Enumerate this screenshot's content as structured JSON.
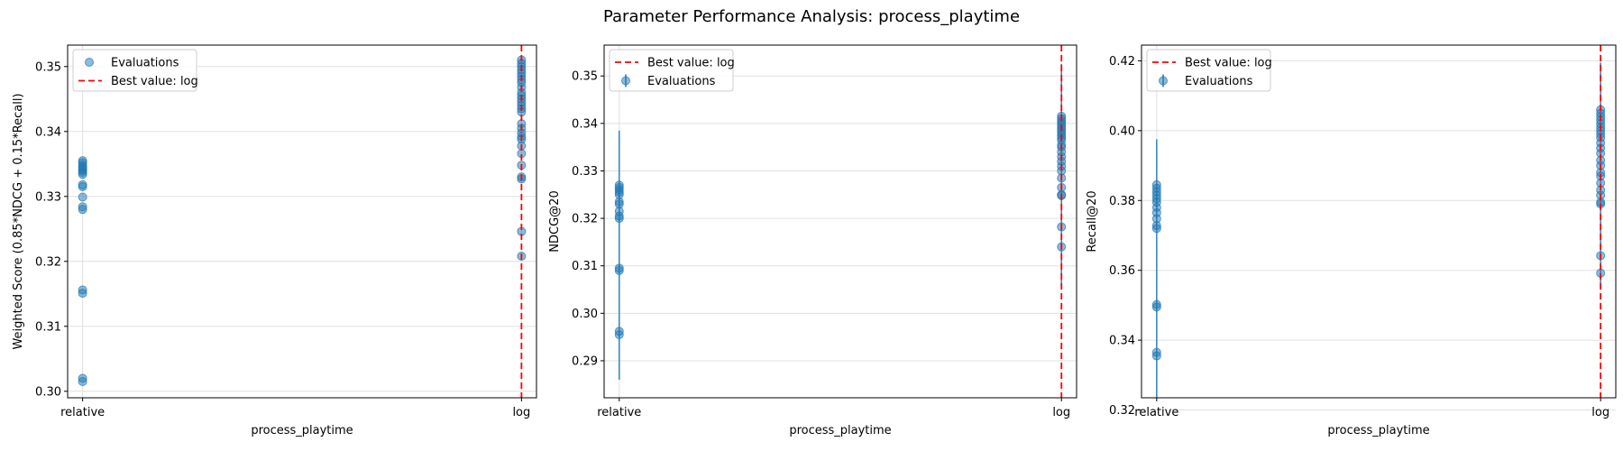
{
  "suptitle": "Parameter Performance Analysis: process_playtime",
  "colors": {
    "points": "#1f77b4",
    "best_line": "#ff0000",
    "grid": "#e0e0e0",
    "axis": "#000000"
  },
  "chart_data": [
    {
      "type": "scatter",
      "xlabel": "process_playtime",
      "ylabel": "Weighted Score (0.85*NDCG + 0.15*Recall)",
      "categories": [
        "relative",
        "log"
      ],
      "ylim": [
        0.299,
        0.3533
      ],
      "yticks": [
        0.3,
        0.31,
        0.32,
        0.33,
        0.34,
        0.35
      ],
      "ytick_labels": [
        "0.30",
        "0.31",
        "0.32",
        "0.33",
        "0.34",
        "0.35"
      ],
      "grid": true,
      "legend_position": "top-left",
      "legend": [
        "Evaluations",
        "Best value: log"
      ],
      "legend_order": [
        "points",
        "line"
      ],
      "best_value": "log",
      "error_bars": null,
      "series": [
        {
          "name": "Evaluations",
          "points": [
            {
              "x": "relative",
              "y": 0.3355
            },
            {
              "x": "relative",
              "y": 0.3352
            },
            {
              "x": "relative",
              "y": 0.3348
            },
            {
              "x": "relative",
              "y": 0.3345
            },
            {
              "x": "relative",
              "y": 0.3342
            },
            {
              "x": "relative",
              "y": 0.334
            },
            {
              "x": "relative",
              "y": 0.3337
            },
            {
              "x": "relative",
              "y": 0.3334
            },
            {
              "x": "relative",
              "y": 0.3318
            },
            {
              "x": "relative",
              "y": 0.3315
            },
            {
              "x": "relative",
              "y": 0.3299
            },
            {
              "x": "relative",
              "y": 0.3284
            },
            {
              "x": "relative",
              "y": 0.328
            },
            {
              "x": "relative",
              "y": 0.3156
            },
            {
              "x": "relative",
              "y": 0.3151
            },
            {
              "x": "relative",
              "y": 0.302
            },
            {
              "x": "relative",
              "y": 0.3015
            },
            {
              "x": "log",
              "y": 0.351
            },
            {
              "x": "log",
              "y": 0.3505
            },
            {
              "x": "log",
              "y": 0.35
            },
            {
              "x": "log",
              "y": 0.3495
            },
            {
              "x": "log",
              "y": 0.349
            },
            {
              "x": "log",
              "y": 0.3485
            },
            {
              "x": "log",
              "y": 0.348
            },
            {
              "x": "log",
              "y": 0.3475
            },
            {
              "x": "log",
              "y": 0.3468
            },
            {
              "x": "log",
              "y": 0.346
            },
            {
              "x": "log",
              "y": 0.3455
            },
            {
              "x": "log",
              "y": 0.345
            },
            {
              "x": "log",
              "y": 0.3445
            },
            {
              "x": "log",
              "y": 0.344
            },
            {
              "x": "log",
              "y": 0.3435
            },
            {
              "x": "log",
              "y": 0.343
            },
            {
              "x": "log",
              "y": 0.3412
            },
            {
              "x": "log",
              "y": 0.3405
            },
            {
              "x": "log",
              "y": 0.3398
            },
            {
              "x": "log",
              "y": 0.3392
            },
            {
              "x": "log",
              "y": 0.3388
            },
            {
              "x": "log",
              "y": 0.3378
            },
            {
              "x": "log",
              "y": 0.3366
            },
            {
              "x": "log",
              "y": 0.3348
            },
            {
              "x": "log",
              "y": 0.333
            },
            {
              "x": "log",
              "y": 0.3327
            },
            {
              "x": "log",
              "y": 0.3246
            },
            {
              "x": "log",
              "y": 0.3208
            }
          ]
        }
      ]
    },
    {
      "type": "scatter",
      "xlabel": "process_playtime",
      "ylabel": "NDCG@20",
      "categories": [
        "relative",
        "log"
      ],
      "ylim": [
        0.2822,
        0.3565
      ],
      "yticks": [
        0.29,
        0.3,
        0.31,
        0.32,
        0.33,
        0.34,
        0.35
      ],
      "ytick_labels": [
        "0.29",
        "0.30",
        "0.31",
        "0.32",
        "0.33",
        "0.34",
        "0.35"
      ],
      "grid": true,
      "legend_position": "top-left",
      "legend": [
        "Best value: log",
        "Evaluations"
      ],
      "legend_order": [
        "line",
        "points"
      ],
      "best_value": "log",
      "error_bars": [
        {
          "x": "relative",
          "low": 0.286,
          "high": 0.3385
        },
        {
          "x": "log",
          "low": 0.306,
          "high": 0.3525
        }
      ],
      "series": [
        {
          "name": "Evaluations",
          "points": [
            {
              "x": "relative",
              "y": 0.327
            },
            {
              "x": "relative",
              "y": 0.3265
            },
            {
              "x": "relative",
              "y": 0.326
            },
            {
              "x": "relative",
              "y": 0.3255
            },
            {
              "x": "relative",
              "y": 0.325
            },
            {
              "x": "relative",
              "y": 0.3235
            },
            {
              "x": "relative",
              "y": 0.323
            },
            {
              "x": "relative",
              "y": 0.3215
            },
            {
              "x": "relative",
              "y": 0.3205
            },
            {
              "x": "relative",
              "y": 0.32
            },
            {
              "x": "relative",
              "y": 0.3095
            },
            {
              "x": "relative",
              "y": 0.309
            },
            {
              "x": "relative",
              "y": 0.2962
            },
            {
              "x": "relative",
              "y": 0.2955
            },
            {
              "x": "log",
              "y": 0.3415
            },
            {
              "x": "log",
              "y": 0.341
            },
            {
              "x": "log",
              "y": 0.3405
            },
            {
              "x": "log",
              "y": 0.34
            },
            {
              "x": "log",
              "y": 0.3395
            },
            {
              "x": "log",
              "y": 0.339
            },
            {
              "x": "log",
              "y": 0.3385
            },
            {
              "x": "log",
              "y": 0.338
            },
            {
              "x": "log",
              "y": 0.3375
            },
            {
              "x": "log",
              "y": 0.337
            },
            {
              "x": "log",
              "y": 0.3365
            },
            {
              "x": "log",
              "y": 0.3355
            },
            {
              "x": "log",
              "y": 0.335
            },
            {
              "x": "log",
              "y": 0.334
            },
            {
              "x": "log",
              "y": 0.333
            },
            {
              "x": "log",
              "y": 0.332
            },
            {
              "x": "log",
              "y": 0.331
            },
            {
              "x": "log",
              "y": 0.33
            },
            {
              "x": "log",
              "y": 0.3285
            },
            {
              "x": "log",
              "y": 0.3265
            },
            {
              "x": "log",
              "y": 0.325
            },
            {
              "x": "log",
              "y": 0.3248
            },
            {
              "x": "log",
              "y": 0.3182
            },
            {
              "x": "log",
              "y": 0.314
            }
          ]
        }
      ]
    },
    {
      "type": "scatter",
      "xlabel": "process_playtime",
      "ylabel": "Recall@20",
      "categories": [
        "relative",
        "log"
      ],
      "ylim": [
        0.3235,
        0.4245
      ],
      "yticks": [
        0.32,
        0.34,
        0.36,
        0.38,
        0.4,
        0.42
      ],
      "ytick_labels": [
        "0.32",
        "0.34",
        "0.36",
        "0.38",
        "0.40",
        "0.42"
      ],
      "grid": true,
      "legend_position": "top-left",
      "legend": [
        "Best value: log",
        "Evaluations"
      ],
      "legend_order": [
        "line",
        "points"
      ],
      "best_value": "log",
      "error_bars": [
        {
          "x": "relative",
          "low": 0.3235,
          "high": 0.3975
        },
        {
          "x": "log",
          "low": 0.355,
          "high": 0.4195
        }
      ],
      "series": [
        {
          "name": "Evaluations",
          "points": [
            {
              "x": "relative",
              "y": 0.3845
            },
            {
              "x": "relative",
              "y": 0.3835
            },
            {
              "x": "relative",
              "y": 0.3825
            },
            {
              "x": "relative",
              "y": 0.3815
            },
            {
              "x": "relative",
              "y": 0.3805
            },
            {
              "x": "relative",
              "y": 0.3795
            },
            {
              "x": "relative",
              "y": 0.378
            },
            {
              "x": "relative",
              "y": 0.3765
            },
            {
              "x": "relative",
              "y": 0.3748
            },
            {
              "x": "relative",
              "y": 0.3728
            },
            {
              "x": "relative",
              "y": 0.372
            },
            {
              "x": "relative",
              "y": 0.3502
            },
            {
              "x": "relative",
              "y": 0.3495
            },
            {
              "x": "relative",
              "y": 0.3365
            },
            {
              "x": "relative",
              "y": 0.3355
            },
            {
              "x": "log",
              "y": 0.406
            },
            {
              "x": "log",
              "y": 0.405
            },
            {
              "x": "log",
              "y": 0.404
            },
            {
              "x": "log",
              "y": 0.403
            },
            {
              "x": "log",
              "y": 0.402
            },
            {
              "x": "log",
              "y": 0.401
            },
            {
              "x": "log",
              "y": 0.4
            },
            {
              "x": "log",
              "y": 0.399
            },
            {
              "x": "log",
              "y": 0.398
            },
            {
              "x": "log",
              "y": 0.3965
            },
            {
              "x": "log",
              "y": 0.395
            },
            {
              "x": "log",
              "y": 0.3935
            },
            {
              "x": "log",
              "y": 0.3915
            },
            {
              "x": "log",
              "y": 0.39
            },
            {
              "x": "log",
              "y": 0.388
            },
            {
              "x": "log",
              "y": 0.387
            },
            {
              "x": "log",
              "y": 0.385
            },
            {
              "x": "log",
              "y": 0.383
            },
            {
              "x": "log",
              "y": 0.3815
            },
            {
              "x": "log",
              "y": 0.3795
            },
            {
              "x": "log",
              "y": 0.379
            },
            {
              "x": "log",
              "y": 0.3642
            },
            {
              "x": "log",
              "y": 0.3592
            }
          ]
        }
      ]
    }
  ]
}
